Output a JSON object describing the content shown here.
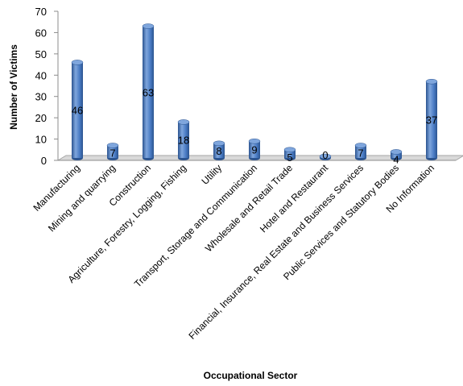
{
  "chart_data": {
    "type": "bar",
    "title": "",
    "xlabel": "Occupational Sector",
    "ylabel": "Number of Victims",
    "ylim": [
      0,
      70
    ],
    "yticks": [
      0,
      10,
      20,
      30,
      40,
      50,
      60,
      70
    ],
    "grid": false,
    "legend": "none",
    "bar_style": "3d-cylinder",
    "colors": {
      "bar": "#4a7cc4",
      "bar_dark": "#2b5490",
      "bar_light": "#7fa6dd",
      "floor": "#d9d9d9"
    },
    "categories": [
      "Manufacturing",
      "Mining and quarrying",
      "Construction",
      "Agriculture, Forestry, Logging, Fishing",
      "Utility",
      "Transport, Storage and Communication",
      "Wholesale and Retail Trade",
      "Hotel and Restaurant",
      "Financial, Insurance, Real Estate and Business Services",
      "Public Services and Statutory Bodies",
      "No Information"
    ],
    "values": [
      46,
      7,
      63,
      18,
      8,
      9,
      5,
      0,
      7,
      4,
      37
    ]
  }
}
